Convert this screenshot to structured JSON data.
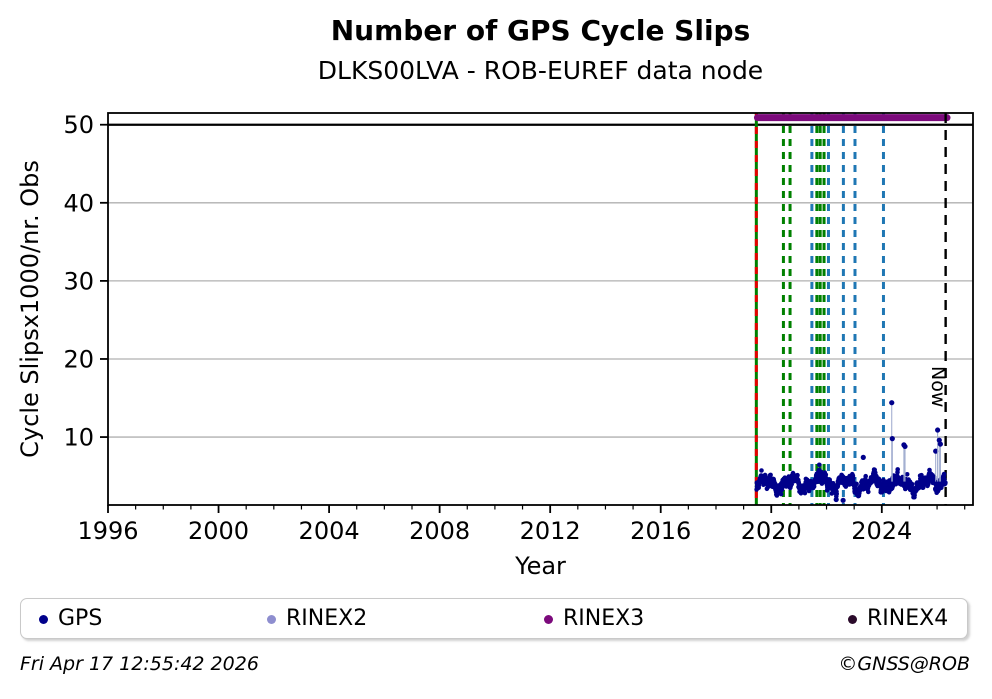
{
  "header": {
    "title": "Number of GPS Cycle Slips",
    "subtitle": "DLKS00LVA - ROB-EUREF data node"
  },
  "axes": {
    "xlabel": "Year",
    "ylabel": "Cycle Slipsx1000/nr. Obs"
  },
  "now_label": "Now",
  "legend": {
    "items": [
      {
        "label": "GPS",
        "color": "#00008b"
      },
      {
        "label": "RINEX2",
        "color": "#8e8ecf"
      },
      {
        "label": "RINEX3",
        "color": "#7c0a7c"
      },
      {
        "label": "RINEX4",
        "color": "#2b0b2b"
      }
    ]
  },
  "footer": {
    "left": "Fri Apr 17 12:55:42 2026",
    "right": "©GNSS@ROB"
  },
  "chart_data": {
    "type": "scatter",
    "title": "Number of GPS Cycle Slips",
    "subtitle": "DLKS00LVA - ROB-EUREF data node",
    "xlabel": "Year",
    "ylabel": "Cycle Slipsx1000/nr. Obs",
    "xlim": [
      1996.0,
      2027.3
    ],
    "ylim": [
      1.3,
      51.5
    ],
    "x_major_ticks": [
      1996,
      2000,
      2004,
      2008,
      2012,
      2016,
      2020,
      2024
    ],
    "x_minor_step": 1,
    "y_ticks": [
      10,
      20,
      30,
      40,
      50
    ],
    "grid": true,
    "grid_color": "#b0b0b0",
    "legend_position": "bottom",
    "threshold_line": {
      "y": 50,
      "color": "#000000"
    },
    "rinex3_bar": {
      "y": 50.9,
      "x_start": 2019.5,
      "x_end": 2026.36,
      "color": "#7c0a7c"
    },
    "now_line": {
      "x": 2026.31,
      "color": "#000000"
    },
    "event_lines": [
      {
        "x": 2019.46,
        "color": "#008000",
        "dash": null,
        "name": "data-start-green"
      },
      {
        "x": 2019.46,
        "color": "#e60000",
        "dash": [
          7,
          7
        ],
        "name": "data-start-red-overlay"
      },
      {
        "x": 2020.44,
        "color": "#008000",
        "dash": [
          7,
          6
        ]
      },
      {
        "x": 2020.68,
        "color": "#008000",
        "dash": [
          7,
          6
        ]
      },
      {
        "x": 2021.47,
        "color": "#1f77b4",
        "dash": [
          7,
          6
        ]
      },
      {
        "x": 2021.65,
        "color": "#008000",
        "dash": [
          7,
          6
        ]
      },
      {
        "x": 2021.77,
        "color": "#008000",
        "dash": [
          7,
          6
        ]
      },
      {
        "x": 2021.91,
        "color": "#008000",
        "dash": [
          7,
          6
        ]
      },
      {
        "x": 2022.07,
        "color": "#1f77b4",
        "dash": [
          7,
          6
        ]
      },
      {
        "x": 2022.61,
        "color": "#1f77b4",
        "dash": [
          7,
          6
        ]
      },
      {
        "x": 2023.03,
        "color": "#1f77b4",
        "dash": [
          7,
          6
        ]
      },
      {
        "x": 2024.06,
        "color": "#1f77b4",
        "dash": [
          7,
          6
        ]
      }
    ],
    "gps_series": {
      "name": "GPS",
      "color": "#00008b",
      "t_start": 2019.47,
      "t_end": 2026.3,
      "n": 920,
      "band_mean": 4.05,
      "band_min": 2.3,
      "band_max": 7.8,
      "seed": 1337
    },
    "outliers": [
      [
        2024.36,
        14.4
      ],
      [
        2024.38,
        9.8
      ],
      [
        2024.8,
        9.0
      ],
      [
        2024.84,
        8.8
      ],
      [
        2025.95,
        8.2
      ],
      [
        2026.02,
        10.9
      ],
      [
        2026.08,
        9.6
      ],
      [
        2026.12,
        9.1
      ],
      [
        2023.33,
        7.4
      ],
      [
        2022.35,
        2.0
      ],
      [
        2022.6,
        1.9
      ]
    ]
  }
}
